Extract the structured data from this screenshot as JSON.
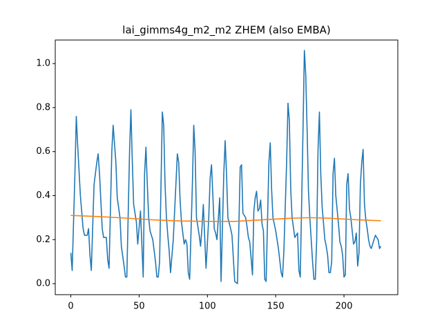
{
  "chart_data": {
    "type": "line",
    "title": "lai_gimms4g_m2_m2 ZHEM (also EMBA)",
    "series": [
      {
        "color": "#1f77b4",
        "x": [
          0,
          1,
          3,
          4,
          5,
          7,
          9,
          10,
          12,
          13,
          14,
          15,
          17,
          19,
          20,
          21,
          23,
          24,
          26,
          27,
          28,
          30,
          31,
          33,
          34,
          36,
          37,
          39,
          40,
          41,
          43,
          44,
          45,
          46,
          48,
          49,
          51,
          53,
          54,
          55,
          56,
          57,
          58,
          60,
          62,
          63,
          64,
          65,
          67,
          68,
          69,
          70,
          71,
          72,
          73,
          75,
          77,
          78,
          79,
          80,
          81,
          83,
          84,
          85,
          86,
          87,
          89,
          90,
          91,
          92,
          94,
          95,
          96,
          97,
          99,
          101,
          102,
          103,
          104,
          105,
          106,
          107,
          109,
          110,
          112,
          113,
          114,
          115,
          117,
          118,
          120,
          122,
          123,
          124,
          125,
          126,
          128,
          129,
          130,
          131,
          133,
          134,
          135,
          136,
          137,
          138,
          139,
          140,
          141,
          142,
          143,
          145,
          146,
          147,
          148,
          150,
          151,
          152,
          154,
          155,
          156,
          158,
          159,
          160,
          161,
          162,
          164,
          165,
          166,
          167,
          168,
          170,
          171,
          172,
          173,
          174,
          175,
          176,
          177,
          178,
          179,
          180,
          181,
          182,
          183,
          184,
          186,
          187,
          188,
          189,
          190,
          191,
          192,
          193,
          194,
          196,
          197,
          198,
          199,
          200,
          201,
          202,
          203,
          204,
          205,
          206,
          207,
          208,
          209,
          210,
          211,
          212,
          213,
          214,
          215,
          216,
          217,
          218,
          219,
          220,
          221,
          223,
          225,
          226,
          227
        ],
        "values": [
          0.14,
          0.06,
          0.5,
          0.76,
          0.63,
          0.4,
          0.25,
          0.22,
          0.22,
          0.25,
          0.13,
          0.06,
          0.45,
          0.55,
          0.59,
          0.5,
          0.25,
          0.21,
          0.21,
          0.11,
          0.07,
          0.6,
          0.72,
          0.55,
          0.39,
          0.3,
          0.17,
          0.08,
          0.03,
          0.03,
          0.6,
          0.79,
          0.56,
          0.36,
          0.28,
          0.18,
          0.33,
          0.03,
          0.5,
          0.62,
          0.45,
          0.3,
          0.24,
          0.2,
          0.1,
          0.03,
          0.03,
          0.1,
          0.78,
          0.72,
          0.45,
          0.3,
          0.22,
          0.15,
          0.05,
          0.2,
          0.46,
          0.59,
          0.55,
          0.38,
          0.28,
          0.18,
          0.2,
          0.18,
          0.05,
          0.02,
          0.45,
          0.72,
          0.6,
          0.3,
          0.22,
          0.17,
          0.25,
          0.36,
          0.07,
          0.3,
          0.48,
          0.54,
          0.4,
          0.25,
          0.23,
          0.2,
          0.39,
          0.01,
          0.5,
          0.65,
          0.5,
          0.3,
          0.25,
          0.22,
          0.01,
          0.0,
          0.25,
          0.53,
          0.54,
          0.32,
          0.3,
          0.26,
          0.21,
          0.19,
          0.04,
          0.33,
          0.39,
          0.42,
          0.33,
          0.34,
          0.38,
          0.27,
          0.24,
          0.02,
          0.01,
          0.55,
          0.64,
          0.43,
          0.3,
          0.24,
          0.2,
          0.16,
          0.05,
          0.03,
          0.15,
          0.55,
          0.82,
          0.74,
          0.43,
          0.3,
          0.21,
          0.22,
          0.23,
          0.06,
          0.03,
          0.7,
          1.06,
          0.95,
          0.7,
          0.42,
          0.3,
          0.2,
          0.1,
          0.02,
          0.02,
          0.2,
          0.61,
          0.78,
          0.5,
          0.35,
          0.2,
          0.17,
          0.13,
          0.05,
          0.05,
          0.1,
          0.5,
          0.57,
          0.4,
          0.27,
          0.19,
          0.17,
          0.13,
          0.03,
          0.04,
          0.45,
          0.5,
          0.34,
          0.3,
          0.24,
          0.18,
          0.19,
          0.23,
          0.08,
          0.14,
          0.45,
          0.55,
          0.61,
          0.36,
          0.29,
          0.25,
          0.2,
          0.17,
          0.16,
          0.18,
          0.22,
          0.2,
          0.16,
          0.17
        ]
      },
      {
        "color": "#ff7f0e",
        "x": [
          0,
          20,
          40,
          60,
          80,
          100,
          120,
          140,
          160,
          175,
          190,
          210,
          227
        ],
        "values": [
          0.31,
          0.305,
          0.298,
          0.29,
          0.285,
          0.283,
          0.283,
          0.29,
          0.297,
          0.3,
          0.297,
          0.29,
          0.286
        ]
      }
    ],
    "xlim": [
      -11.4,
      239.4
    ],
    "xticks": [
      0,
      50,
      100,
      150,
      200
    ],
    "ylim": [
      -0.05,
      1.107
    ],
    "yticks": [
      {
        "value": 0,
        "label": "0.0"
      },
      0.2,
      0.4,
      0.6,
      0.8,
      {
        "value": 1,
        "label": "1.0"
      }
    ]
  }
}
